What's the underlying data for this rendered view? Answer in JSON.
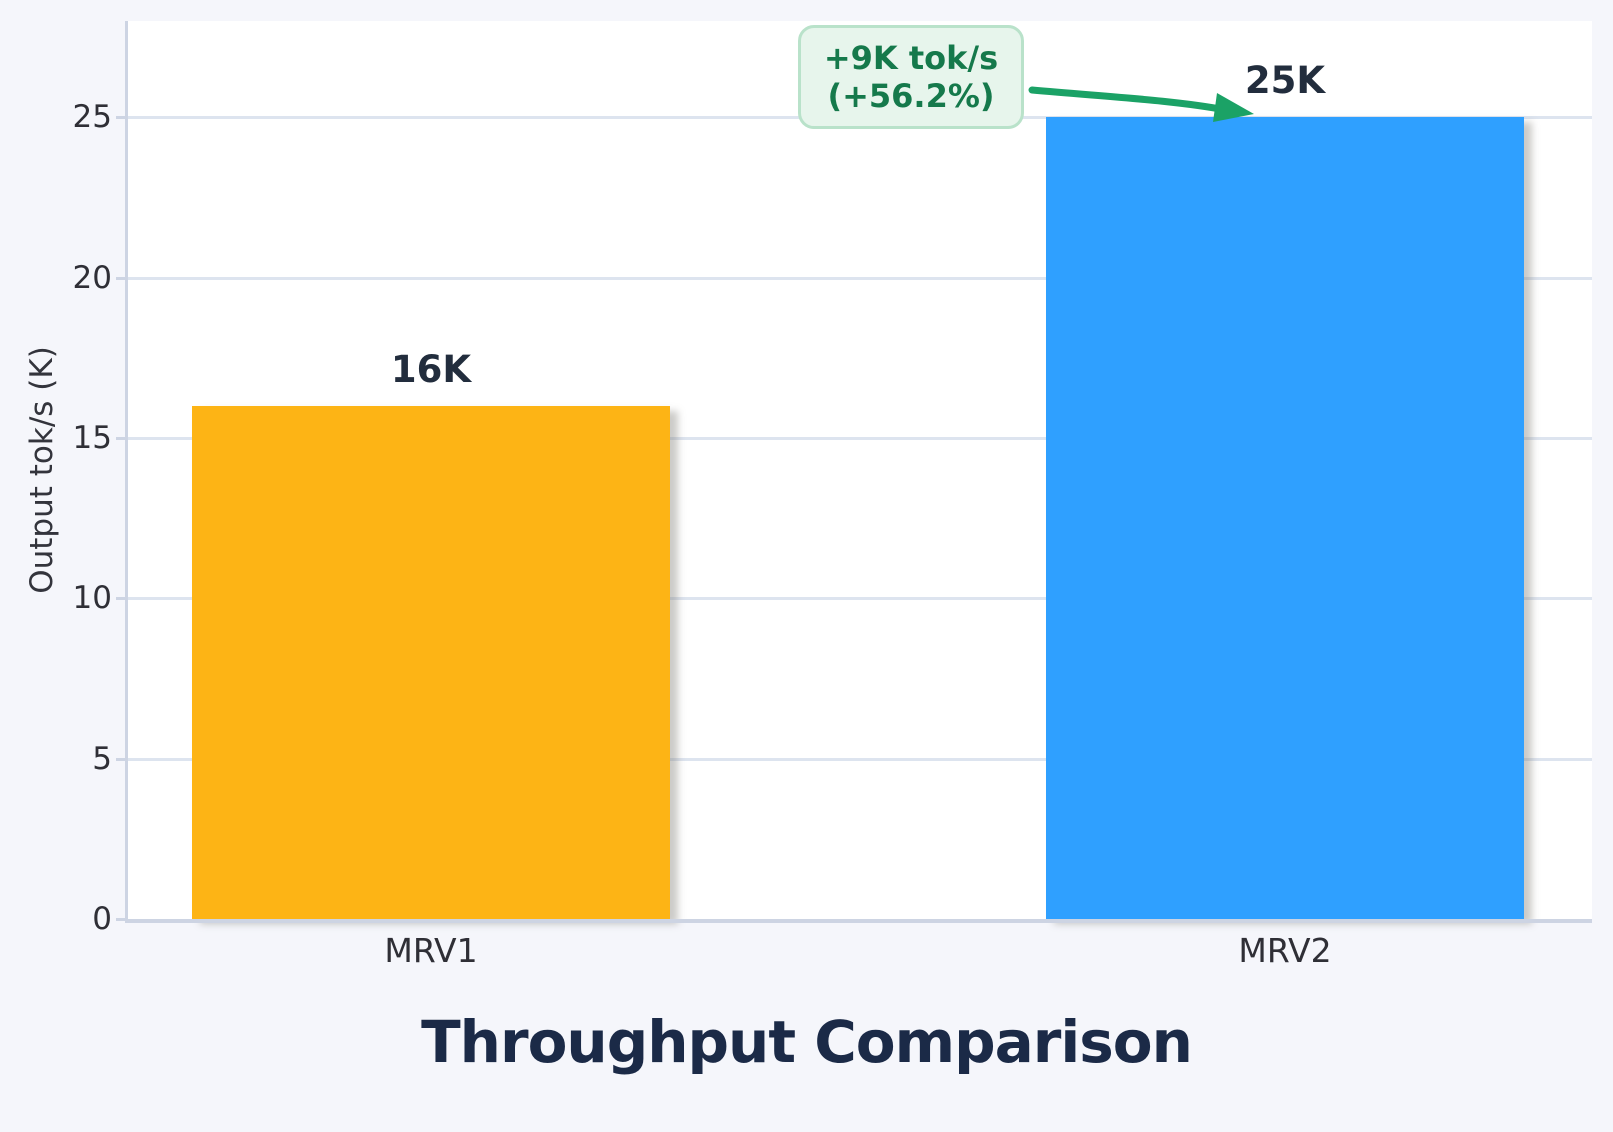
{
  "chart_data": {
    "type": "bar",
    "title": "Throughput Comparison",
    "xlabel": "",
    "ylabel": "Output tok/s (K)",
    "categories": [
      "MRV1",
      "MRV2"
    ],
    "values": [
      16,
      25
    ],
    "bar_labels": [
      "16K",
      "25K"
    ],
    "bar_colors": [
      "#FDB415",
      "#2FA0FF"
    ],
    "ytick_values": [
      0,
      5,
      10,
      15,
      20,
      25
    ],
    "ytick_labels": [
      "0",
      "5",
      "10",
      "15",
      "20",
      "25"
    ],
    "ylim": [
      0,
      28
    ],
    "grid": true,
    "legend_position": "none",
    "annotation": {
      "lines": [
        "+9K tok/s",
        "(+56.2%)"
      ],
      "points_to": "MRV2",
      "text_color": "#15794B",
      "box_fill": "#E7F5EC",
      "box_border": "#B9E2CA",
      "arrow_color": "#1BA266"
    },
    "colors": {
      "background": "#F5F6FB",
      "plot_background": "#FFFFFF",
      "gridline": "#DDE4EF",
      "spine": "#CDD4E3",
      "title_text": "#1B2A47",
      "tick_text": "#2F2F36",
      "value_label_text": "#222D3D"
    }
  }
}
